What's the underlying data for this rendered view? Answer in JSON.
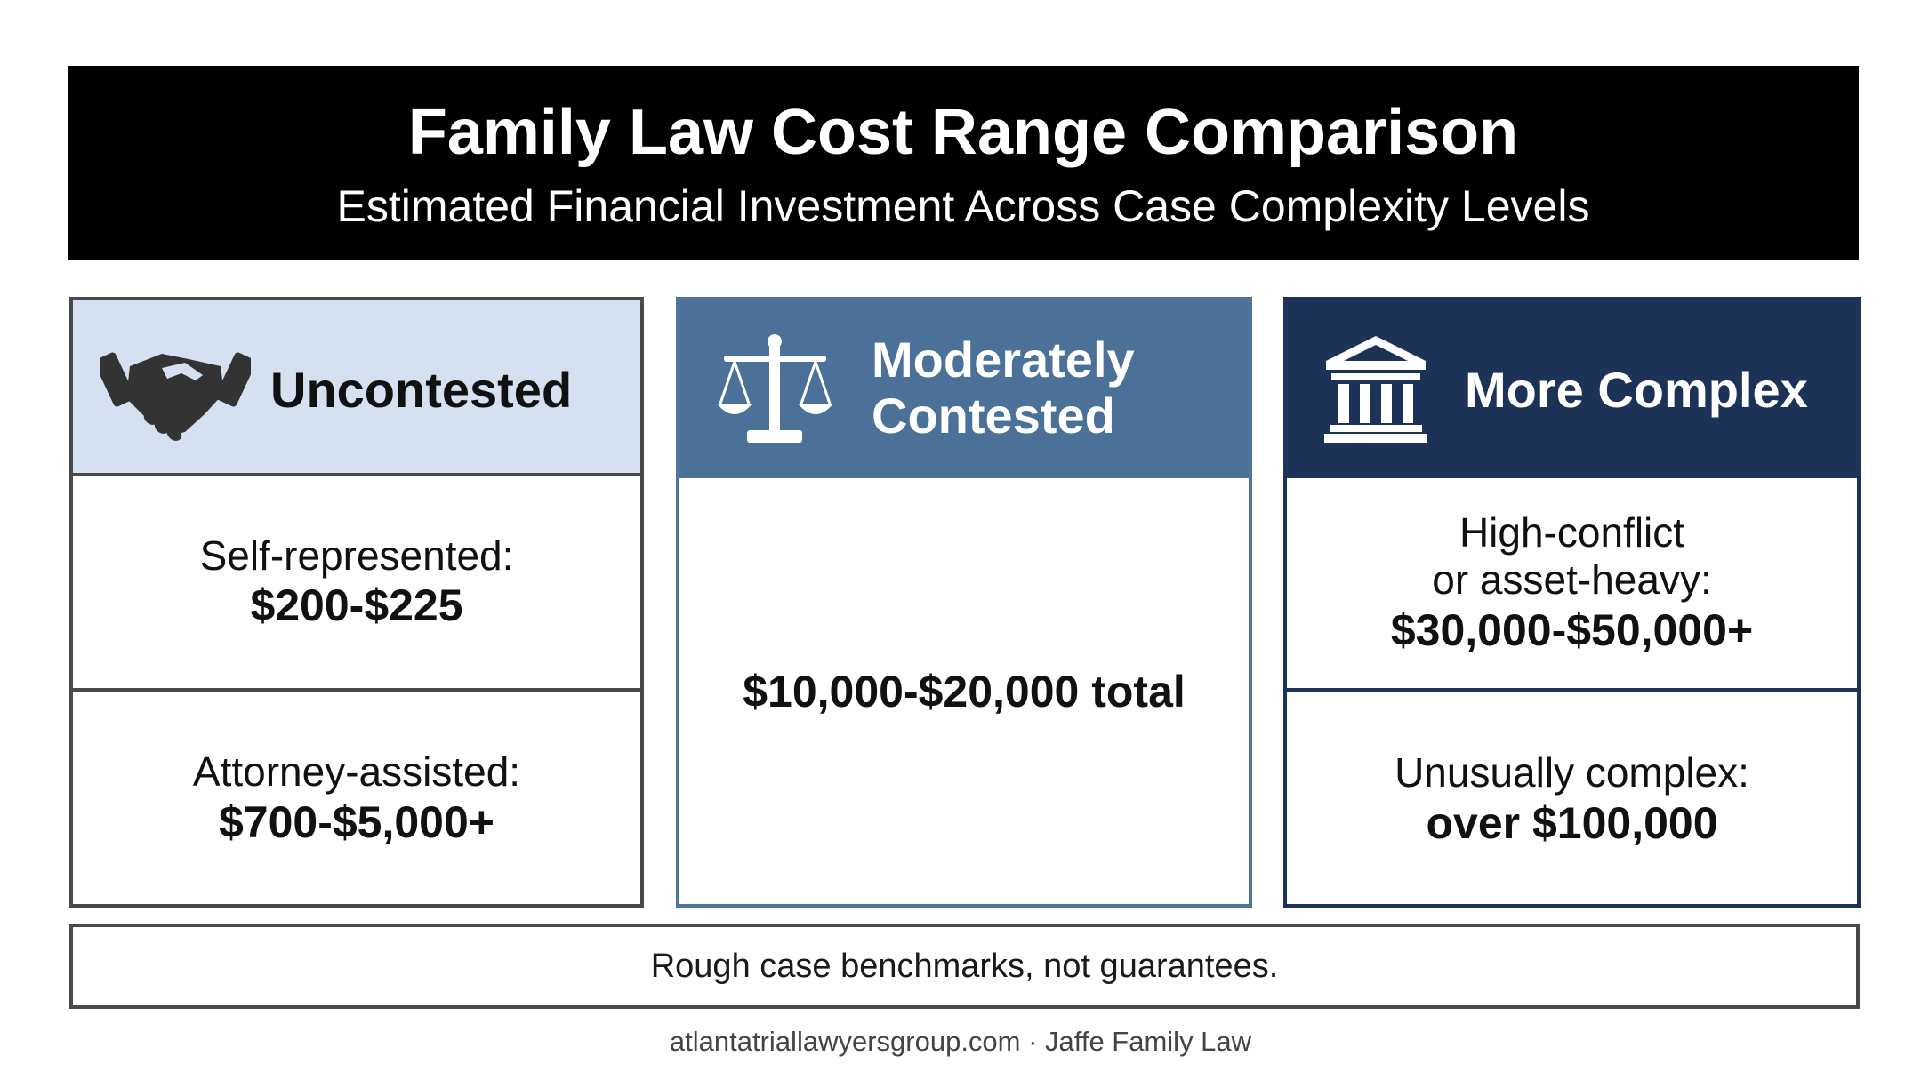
{
  "header": {
    "title": "Family Law Cost Range Comparison",
    "subtitle": "Estimated Financial Investment Across Case Complexity Levels"
  },
  "cards": [
    {
      "title": "Uncontested",
      "icon": "handshake-icon",
      "header_color": "#d5e1f0",
      "rows": [
        {
          "label": "Self-represented:",
          "amount": "$200-$225"
        },
        {
          "label": "Attorney-assisted:",
          "amount": "$700-$5,000+"
        }
      ]
    },
    {
      "title_line1": "Moderately",
      "title_line2": "Contested",
      "icon": "scales-of-justice-icon",
      "header_color": "#4b7199",
      "rows": [
        {
          "amount": "$10,000-$20,000 total"
        }
      ]
    },
    {
      "title": "More Complex",
      "icon": "courthouse-icon",
      "header_color": "#1c3357",
      "rows": [
        {
          "label_line1": "High-conflict",
          "label_line2": "or asset-heavy:",
          "amount": "$30,000-$50,000+"
        },
        {
          "label": "Unusually complex:",
          "amount": "over $100,000"
        }
      ]
    }
  ],
  "note": "Rough case benchmarks, not guarantees.",
  "footer": "atlantatriallawyersgroup.com · Jaffe Family Law"
}
